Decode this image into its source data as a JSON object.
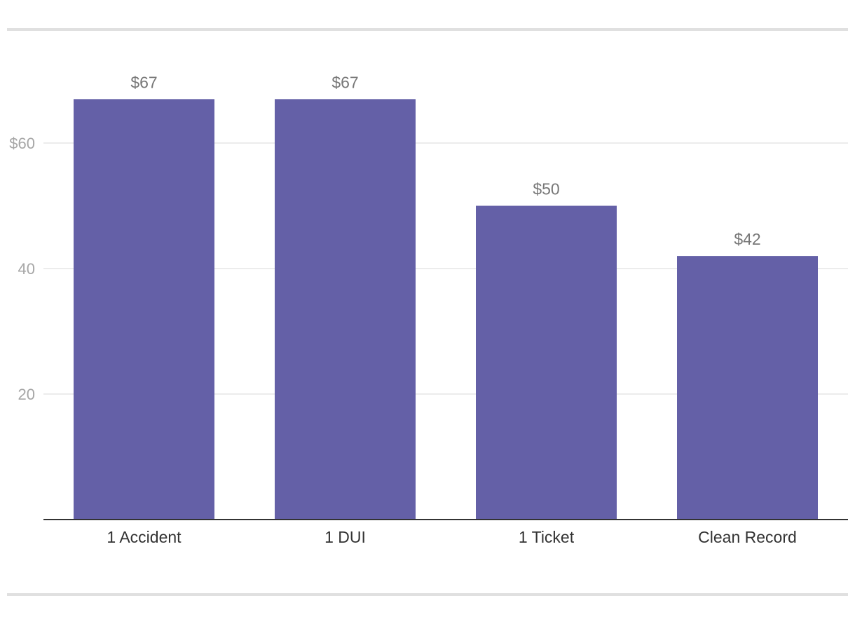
{
  "chart_data": {
    "type": "bar",
    "categories": [
      "1 Accident",
      "1 DUI",
      "1 Ticket",
      "Clean Record"
    ],
    "values": [
      67,
      67,
      50,
      42
    ],
    "data_labels": [
      "$67",
      "$67",
      "$50",
      "$42"
    ],
    "yticks": [
      {
        "value": 20,
        "label": "20"
      },
      {
        "value": 40,
        "label": "40"
      },
      {
        "value": 60,
        "label": "$60"
      }
    ],
    "ylim": [
      0,
      80
    ],
    "grid": true,
    "colors": {
      "bar": "#6460a7",
      "grid": "#e6e6e6",
      "axis": "#333333"
    }
  }
}
